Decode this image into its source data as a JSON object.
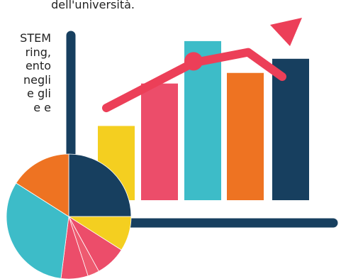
{
  "text": {
    "top_line": "dell'università.",
    "left_lines": [
      "STEM",
      "ring,",
      "ento",
      "negli",
      "e gli",
      "e  e"
    ]
  },
  "chart_data": {
    "type": "bar",
    "categories": [
      "",
      "",
      "",
      "",
      ""
    ],
    "values": [
      2.1,
      3.3,
      4.5,
      3.6,
      4.0
    ],
    "colors": [
      "#f4cf20",
      "#ec4d6a",
      "#3dbcc8",
      "#ee7322",
      "#173f5f"
    ],
    "trend": {
      "values": [
        3.1,
        5.7,
        6.3,
        4.9,
        5.6
      ],
      "color": "#ec3f58"
    },
    "pie": {
      "values": [
        25,
        9,
        8,
        3,
        7,
        32,
        16
      ],
      "colors": [
        "#173f5f",
        "#f4cf20",
        "#ec4d6a",
        "#ee5a70",
        "#ec4d6a",
        "#3dbcc8",
        "#ee7322"
      ]
    },
    "axis_color": "#173f5f"
  }
}
